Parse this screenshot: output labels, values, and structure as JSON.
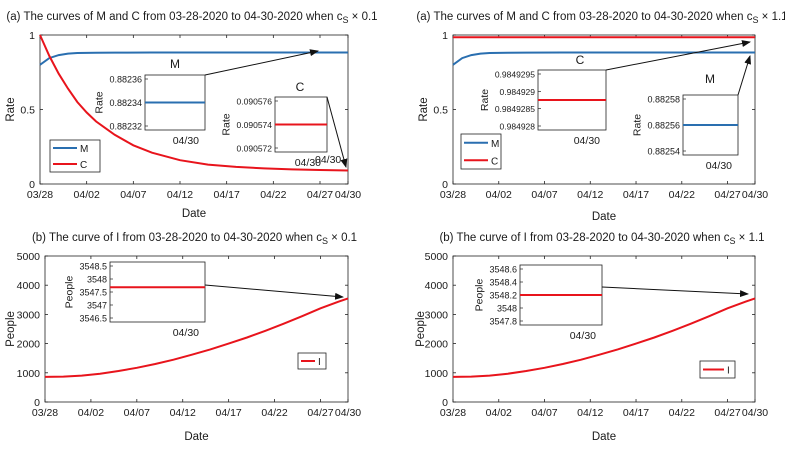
{
  "chart_data": [
    {
      "type": "line",
      "title": "(a) The curves of M and C from 03-28-2020 to 04-30-2020 when c",
      "title_sub": "S",
      "title_suffix": " × 0.1",
      "xlabel": "Date",
      "ylabel": "Rate",
      "xticks": [
        "03/28",
        "04/02",
        "04/07",
        "04/12",
        "04/17",
        "04/22",
        "04/27",
        "04/30"
      ],
      "xtick_days": [
        0,
        5,
        10,
        15,
        20,
        25,
        30,
        33
      ],
      "ylim": [
        0,
        1
      ],
      "yticks": [
        0,
        0.5,
        1
      ],
      "ytick_labels": [
        "0",
        "0.5",
        "1"
      ],
      "series": [
        {
          "name": "M",
          "color": "#2a6fb0",
          "x": [
            0,
            1,
            2,
            3,
            4,
            6,
            8,
            12,
            16,
            20,
            25,
            30,
            33
          ],
          "y": [
            0.8,
            0.845,
            0.865,
            0.875,
            0.879,
            0.881,
            0.882,
            0.8823,
            0.8823,
            0.8823,
            0.8823,
            0.8823,
            0.8823
          ]
        },
        {
          "name": "C",
          "color": "#e8141c",
          "x": [
            0,
            1,
            2,
            3,
            4,
            5,
            6,
            8,
            10,
            12,
            15,
            18,
            21,
            24,
            27,
            30,
            33
          ],
          "y": [
            1.0,
            0.86,
            0.74,
            0.64,
            0.55,
            0.48,
            0.42,
            0.33,
            0.26,
            0.21,
            0.16,
            0.13,
            0.115,
            0.105,
            0.098,
            0.094,
            0.0906
          ]
        }
      ],
      "legend": {
        "position": "bottom-left",
        "entries": [
          "M",
          "C"
        ]
      },
      "insets": [
        {
          "label": "M",
          "ylabel": "Rate",
          "yticks": [
            "0.88236",
            "0.88234",
            "0.88232"
          ],
          "xlabel": "04/30",
          "color": "#2a6fb0"
        },
        {
          "label": "C",
          "ylabel": "Rate",
          "yticks": [
            "0.090576",
            "0.090574",
            "0.090572"
          ],
          "xlabel": "04/30",
          "color": "#e8141c"
        }
      ],
      "annotations": [
        "04/30"
      ]
    },
    {
      "type": "line",
      "title": "(a) The curves of M and C from 03-28-2020 to 04-30-2020 when c",
      "title_sub": "S",
      "title_suffix": " × 1.1",
      "xlabel": "Date",
      "ylabel": "Rate",
      "xticks": [
        "03/28",
        "04/02",
        "04/07",
        "04/12",
        "04/17",
        "04/22",
        "04/27",
        "04/30"
      ],
      "xtick_days": [
        0,
        5,
        10,
        15,
        20,
        25,
        30,
        33
      ],
      "ylim": [
        0,
        1
      ],
      "yticks": [
        0,
        0.5,
        1
      ],
      "ytick_labels": [
        "0",
        "0.5",
        "1"
      ],
      "series": [
        {
          "name": "M",
          "color": "#2a6fb0",
          "x": [
            0,
            1,
            2,
            3,
            4,
            6,
            8,
            12,
            16,
            20,
            25,
            30,
            33
          ],
          "y": [
            0.8,
            0.845,
            0.865,
            0.875,
            0.879,
            0.881,
            0.882,
            0.8826,
            0.8826,
            0.8826,
            0.8826,
            0.8826,
            0.8826
          ]
        },
        {
          "name": "C",
          "color": "#e8141c",
          "x": [
            0,
            33
          ],
          "y": [
            0.985,
            0.985
          ]
        }
      ],
      "legend": {
        "position": "bottom-left",
        "entries": [
          "M",
          "C"
        ]
      },
      "insets": [
        {
          "label": "C",
          "ylabel": "Rate",
          "yticks": [
            "0.9849295",
            "0.984929",
            "0.9849285",
            "0.984928"
          ],
          "xlabel": "04/30",
          "color": "#e8141c"
        },
        {
          "label": "M",
          "ylabel": "Rate",
          "yticks": [
            "0.88258",
            "0.88256",
            "0.88254"
          ],
          "xlabel": "04/30",
          "color": "#2a6fb0"
        }
      ]
    },
    {
      "type": "line",
      "title": "(b) The curve of I from 03-28-2020 to 04-30-2020 when c",
      "title_sub": "S",
      "title_suffix": " × 0.1",
      "xlabel": "Date",
      "ylabel": "People",
      "xticks": [
        "03/28",
        "04/02",
        "04/07",
        "04/12",
        "04/17",
        "04/22",
        "04/27",
        "04/30"
      ],
      "xtick_days": [
        0,
        5,
        10,
        15,
        20,
        25,
        30,
        33
      ],
      "ylim": [
        0,
        5000
      ],
      "yticks": [
        0,
        1000,
        2000,
        3000,
        4000,
        5000
      ],
      "ytick_labels": [
        "0",
        "1000",
        "2000",
        "3000",
        "4000",
        "5000"
      ],
      "series": [
        {
          "name": "I",
          "color": "#e8141c",
          "x": [
            0,
            2,
            4,
            6,
            8,
            10,
            12,
            14,
            16,
            18,
            20,
            22,
            24,
            26,
            28,
            30,
            32,
            33
          ],
          "y": [
            860,
            870,
            905,
            970,
            1060,
            1170,
            1300,
            1450,
            1620,
            1800,
            2000,
            2210,
            2440,
            2680,
            2940,
            3210,
            3440,
            3548
          ]
        }
      ],
      "legend": {
        "position": "right",
        "entries": [
          "I"
        ]
      },
      "insets": [
        {
          "label": "",
          "ylabel": "People",
          "yticks": [
            "3548.5",
            "3548",
            "3547.5",
            "3547",
            "3546.5"
          ],
          "xlabel": "04/30",
          "color": "#e8141c"
        }
      ]
    },
    {
      "type": "line",
      "title": "(b) The curve of I from 03-28-2020 to 04-30-2020 when c",
      "title_sub": "S",
      "title_suffix": " × 1.1",
      "xlabel": "Date",
      "ylabel": "People",
      "xticks": [
        "03/28",
        "04/02",
        "04/07",
        "04/12",
        "04/17",
        "04/22",
        "04/27",
        "04/30"
      ],
      "xtick_days": [
        0,
        5,
        10,
        15,
        20,
        25,
        30,
        33
      ],
      "ylim": [
        0,
        5000
      ],
      "yticks": [
        0,
        1000,
        2000,
        3000,
        4000,
        5000
      ],
      "ytick_labels": [
        "0",
        "1000",
        "2000",
        "3000",
        "4000",
        "5000"
      ],
      "series": [
        {
          "name": "I",
          "color": "#e8141c",
          "x": [
            0,
            2,
            4,
            6,
            8,
            10,
            12,
            14,
            16,
            18,
            20,
            22,
            24,
            26,
            28,
            30,
            32,
            33
          ],
          "y": [
            860,
            870,
            905,
            970,
            1060,
            1170,
            1300,
            1450,
            1620,
            1800,
            2000,
            2210,
            2440,
            2680,
            2940,
            3210,
            3440,
            3548
          ]
        }
      ],
      "legend": {
        "position": "right",
        "entries": [
          "I"
        ]
      },
      "insets": [
        {
          "label": "",
          "ylabel": "People",
          "yticks": [
            "3548.6",
            "3548.4",
            "3548.2",
            "3548",
            "3547.8"
          ],
          "xlabel": "04/30",
          "color": "#e8141c"
        }
      ]
    }
  ]
}
